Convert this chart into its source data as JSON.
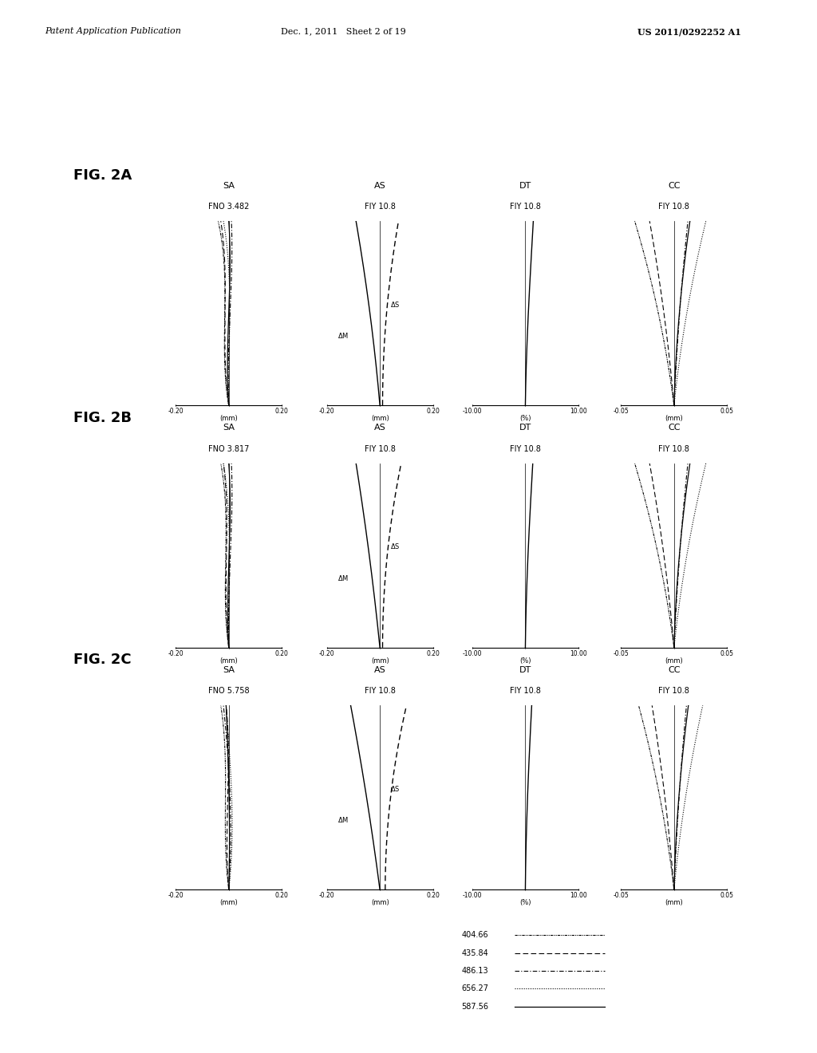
{
  "header_left": "Patent Application Publication",
  "header_center": "Dec. 1, 2011   Sheet 2 of 19",
  "header_right": "US 2011/0292252 A1",
  "fig_labels": [
    "FIG. 2A",
    "FIG. 2B",
    "FIG. 2C"
  ],
  "fno_values": [
    "FNO 3.482",
    "FNO 3.817",
    "FNO 5.758"
  ],
  "sa_xlim": [
    -0.2,
    0.2
  ],
  "as_xlim": [
    -0.2,
    0.2
  ],
  "dt_xlim": [
    -10.0,
    10.0
  ],
  "cc_xlim": [
    -0.05,
    0.05
  ],
  "background": "#ffffff",
  "col_titles": [
    "SA",
    "AS",
    "DT",
    "CC"
  ],
  "col_subtitles_sa": [
    "FNO 3.482",
    "FNO 3.817",
    "FNO 5.758"
  ],
  "col_subtitle_fiy": "FIY 10.8",
  "legend_wavelengths": [
    "404.66",
    "435.84",
    "486.13",
    "656.27",
    "587.56"
  ]
}
